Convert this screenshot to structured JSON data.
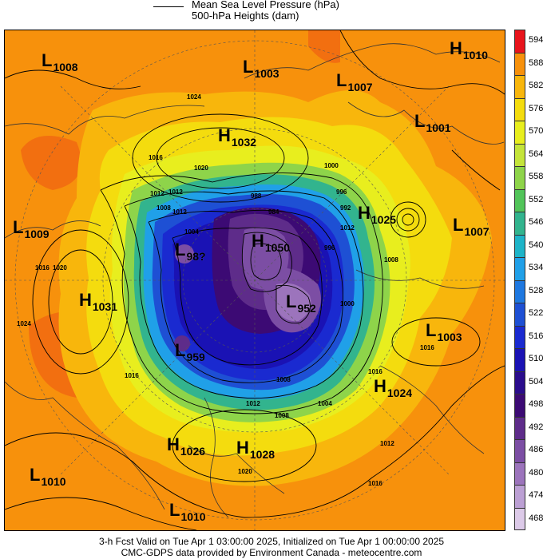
{
  "legend": {
    "line1": "Mean Sea Level Pressure (hPa)",
    "line2": "500-hPa Heights (dam)"
  },
  "pressure_systems": [
    {
      "type": "L",
      "value": "1008"
    },
    {
      "type": "L",
      "value": "1003"
    },
    {
      "type": "L",
      "value": "1007"
    },
    {
      "type": "H",
      "value": "1010"
    },
    {
      "type": "L",
      "value": "1001"
    },
    {
      "type": "H",
      "value": "1032"
    },
    {
      "type": "L",
      "value": "1009"
    },
    {
      "type": "H",
      "value": "1025"
    },
    {
      "type": "L",
      "value": "1007"
    },
    {
      "type": "H",
      "value": "1050"
    },
    {
      "type": "L",
      "value": "98?"
    },
    {
      "type": "H",
      "value": "1031"
    },
    {
      "type": "L",
      "value": "952"
    },
    {
      "type": "L",
      "value": "1003"
    },
    {
      "type": "L",
      "value": "959"
    },
    {
      "type": "H",
      "value": "1024"
    },
    {
      "type": "H",
      "value": "1026"
    },
    {
      "type": "H",
      "value": "1028"
    },
    {
      "type": "L",
      "value": "1010"
    },
    {
      "type": "L",
      "value": "1010"
    }
  ],
  "isobar_labels": [
    "1024",
    "1016",
    "1020",
    "1012",
    "1016",
    "1008",
    "1012",
    "1004",
    "1000",
    "996",
    "992",
    "988",
    "984",
    "1020",
    "1024",
    "1016",
    "1012",
    "1008",
    "1004",
    "1000",
    "996",
    "1012",
    "1008",
    "1016",
    "1020",
    "1016",
    "1012",
    "1012",
    "1008",
    "1016"
  ],
  "colorbar": {
    "labels": [
      "594",
      "588",
      "582",
      "576",
      "570",
      "564",
      "558",
      "552",
      "546",
      "540",
      "534",
      "528",
      "522",
      "516",
      "510",
      "504",
      "498",
      "492",
      "486",
      "480",
      "474",
      "468"
    ],
    "colors": [
      "#e8141c",
      "#f7910c",
      "#f8b60c",
      "#f4dc0e",
      "#e8ee1e",
      "#c4e43a",
      "#8ed44a",
      "#52c45a",
      "#32b48e",
      "#1eb4c8",
      "#20a0e8",
      "#1e78e0",
      "#1e50d4",
      "#1a2ad0",
      "#1a12b4",
      "#2a0c8c",
      "#3c0a74",
      "#5e2c8a",
      "#7c4ea4",
      "#9c74bc",
      "#bca0d4",
      "#dccae8"
    ]
  },
  "footer": {
    "line1": "3-h Fcst Valid on Tue Apr  1 03:00:00 2025, Initialized on Tue Apr  1 00:00:00 2025",
    "line2": "CMC-GDPS data provided by Environment Canada - meteocentre.com"
  }
}
